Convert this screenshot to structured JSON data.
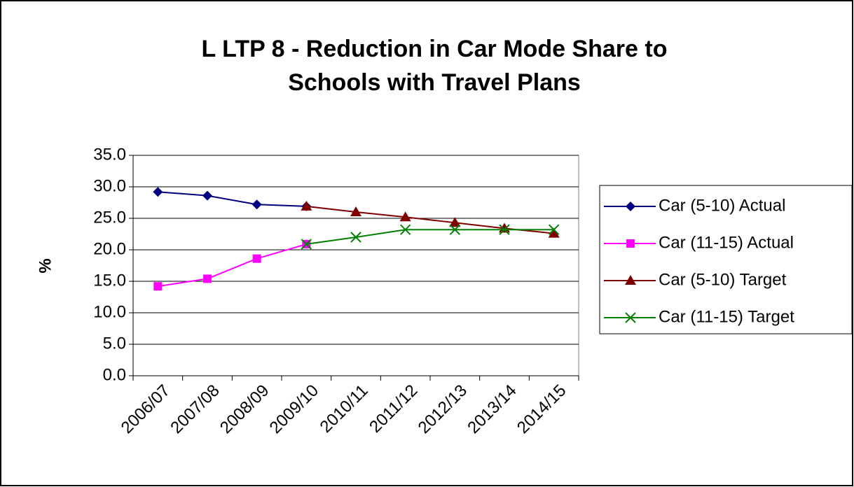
{
  "chart_data": {
    "type": "line",
    "title": [
      "L LTP 8 - Reduction in Car Mode Share to",
      "Schools with Travel Plans"
    ],
    "y_label": "%",
    "categories": [
      "2006/07",
      "2007/08",
      "2008/09",
      "2009/10",
      "2010/11",
      "2011/12",
      "2012/13",
      "2013/14",
      "2014/15"
    ],
    "series": [
      {
        "name": "Car (5-10) Actual",
        "color": "#000080",
        "marker": "diamond",
        "values": [
          29.2,
          28.6,
          27.2,
          26.9,
          null,
          null,
          null,
          null,
          null
        ]
      },
      {
        "name": "Car (11-15) Actual",
        "color": "#ff00ff",
        "marker": "square",
        "values": [
          14.2,
          15.4,
          18.6,
          20.9,
          null,
          null,
          null,
          null,
          null
        ]
      },
      {
        "name": "Car (5-10) Target",
        "color": "#800000",
        "marker": "triangle",
        "values": [
          null,
          null,
          null,
          26.9,
          26.0,
          25.2,
          24.3,
          23.4,
          22.6
        ]
      },
      {
        "name": "Car (11-15) Target",
        "color": "#008000",
        "marker": "x",
        "values": [
          null,
          null,
          null,
          20.9,
          22.0,
          23.2,
          23.2,
          23.2,
          23.2
        ]
      }
    ],
    "ylim": [
      0,
      35
    ],
    "yticks": [
      {
        "value": 0,
        "label": "0.0"
      },
      {
        "value": 5,
        "label": "5.0"
      },
      {
        "value": 10,
        "label": "10.0"
      },
      {
        "value": 15,
        "label": "15.0"
      },
      {
        "value": 20,
        "label": "20.0"
      },
      {
        "value": 25,
        "label": "25.0"
      },
      {
        "value": 30,
        "label": "30.0"
      },
      {
        "value": 35,
        "label": "35.0"
      }
    ],
    "grid": true,
    "legend": "right"
  }
}
